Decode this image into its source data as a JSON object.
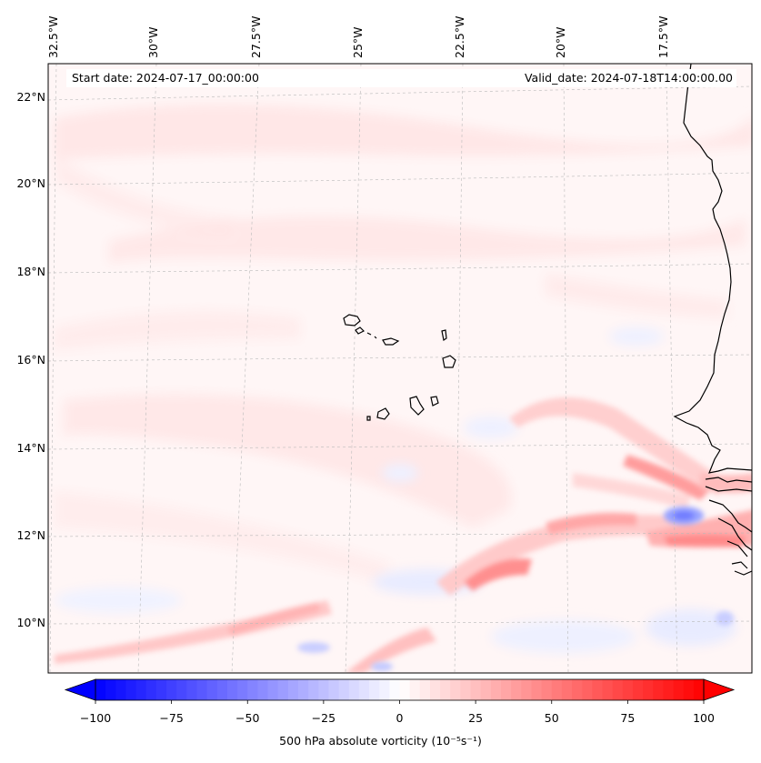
{
  "chart_data": {
    "type": "heatmap",
    "title": "500 hPa absolute vorticity",
    "start_date_text": "Start date: 2024-07-17_00:00:00",
    "valid_date_text": "Valid_date: 2024-07-18T14:00:00.00",
    "lon_ticks": [
      "32.5°W",
      "30°W",
      "27.5°W",
      "25°W",
      "22.5°W",
      "20°W",
      "17.5°W"
    ],
    "lat_ticks": [
      "22°N",
      "20°N",
      "18°N",
      "16°N",
      "14°N",
      "12°N",
      "10°N"
    ],
    "lon_range": [
      -33.0,
      -15.5
    ],
    "lat_range": [
      8.9,
      22.8
    ],
    "colorbar": {
      "label": "500 hPa absolute vorticity",
      "units": "(10⁻⁵s⁻¹)",
      "min": -100,
      "max": 100,
      "colormap": "bwr",
      "extend": "both",
      "ticks": [
        "−100",
        "−75",
        "−50",
        "−25",
        "0",
        "25",
        "50",
        "75",
        "100"
      ],
      "tick_values": [
        -100,
        -75,
        -50,
        -25,
        0,
        25,
        50,
        75,
        100
      ],
      "levels": 60
    },
    "features": [
      {
        "name": "West Africa coastline",
        "type": "coastline"
      },
      {
        "name": "Cape Verde islands",
        "type": "islands"
      }
    ],
    "vorticity_features": [
      {
        "kind": "positive",
        "lon": -21.8,
        "lat": 11.2,
        "value": 45
      },
      {
        "kind": "positive",
        "lon": -18.0,
        "lat": 12.9,
        "value": 35
      },
      {
        "kind": "positive",
        "lon": -16.5,
        "lat": 12.0,
        "value": 40
      },
      {
        "kind": "negative",
        "lon": -17.3,
        "lat": 12.4,
        "value": -35
      },
      {
        "kind": "positive",
        "lon": -25.0,
        "lat": 9.5,
        "value": 20
      },
      {
        "kind": "negative",
        "lon": -16.2,
        "lat": 10.1,
        "value": -20
      }
    ]
  }
}
